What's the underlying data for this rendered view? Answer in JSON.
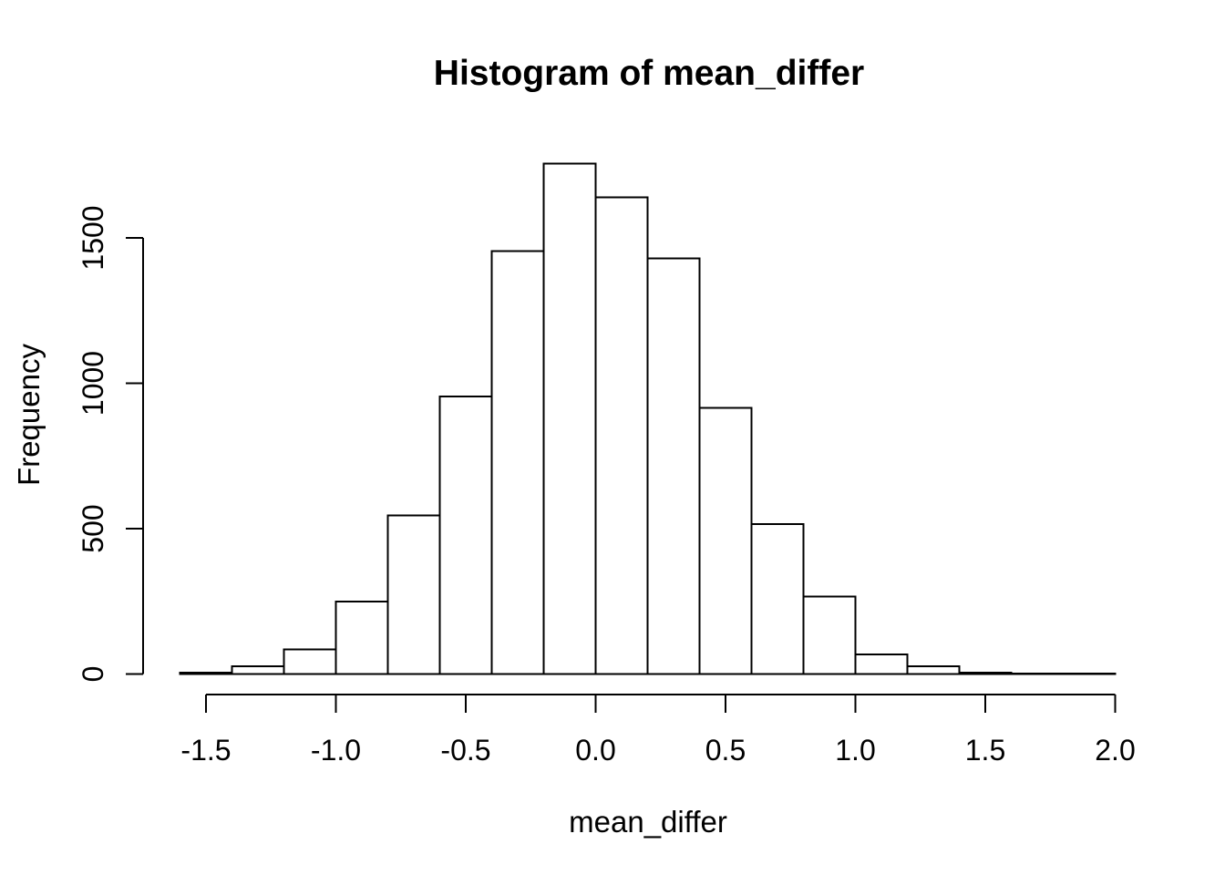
{
  "window": {
    "background": "#ffffff"
  },
  "chart_data": {
    "type": "bar",
    "subtype": "histogram",
    "title": "Histogram of mean_differ",
    "xlabel": "mean_differ",
    "ylabel": "Frequency",
    "breaks": [
      -1.6,
      -1.4,
      -1.2,
      -1.0,
      -0.8,
      -0.6,
      -0.4,
      -0.2,
      0.0,
      0.2,
      0.4,
      0.6,
      0.8,
      1.0,
      1.2,
      1.4,
      1.6,
      1.8,
      2.0
    ],
    "counts": [
      4,
      27,
      85,
      250,
      545,
      955,
      1455,
      1755,
      1640,
      1430,
      915,
      515,
      267,
      68,
      27,
      5,
      2,
      1
    ],
    "x_ticks": [
      {
        "value": -1.5,
        "label": "-1.5"
      },
      {
        "value": -1.0,
        "label": "-1.0"
      },
      {
        "value": -0.5,
        "label": "-0.5"
      },
      {
        "value": 0.0,
        "label": "0.0"
      },
      {
        "value": 0.5,
        "label": "0.5"
      },
      {
        "value": 1.0,
        "label": "1.0"
      },
      {
        "value": 1.5,
        "label": "1.5"
      },
      {
        "value": 2.0,
        "label": "2.0"
      }
    ],
    "y_ticks": [
      {
        "value": 0,
        "label": "0"
      },
      {
        "value": 500,
        "label": "500"
      },
      {
        "value": 1000,
        "label": "1000"
      },
      {
        "value": 1500,
        "label": "1500"
      }
    ],
    "xlim": [
      -1.6,
      2.0
    ],
    "ylim": [
      0,
      1800
    ],
    "grid": false,
    "legend": null,
    "colors": {
      "bar_fill": "#ffffff",
      "stroke": "#000000",
      "text": "#000000",
      "background": "#ffffff"
    }
  }
}
